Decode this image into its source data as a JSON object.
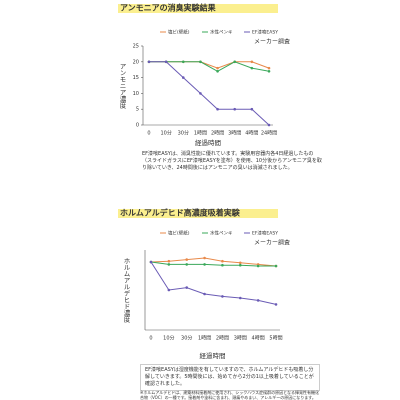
{
  "chart_data": [
    {
      "type": "line",
      "title": "アンモニアの消臭実験結果",
      "annotation": "メーカー調査",
      "y_label": "アンモニア濃度",
      "x_label": "経過時間",
      "categories": [
        "0",
        "10分",
        "30分",
        "1時間",
        "2時間",
        "3時間",
        "4時間",
        "24時間"
      ],
      "series": [
        {
          "name": "塩ビ(壁紙)",
          "color": "#e8894a",
          "values": [
            20,
            20,
            20,
            20,
            18,
            20,
            20,
            18
          ]
        },
        {
          "name": "水性ペンキ",
          "color": "#3aa85a",
          "values": [
            20,
            20,
            20,
            20,
            17,
            20,
            18,
            17
          ]
        },
        {
          "name": "EF漆喰EASY",
          "color": "#6a5bb5",
          "values": [
            20,
            20,
            15,
            10,
            5,
            5,
            5,
            0
          ]
        }
      ],
      "ylim": [
        0,
        25
      ],
      "yticks": [
        0,
        5,
        10,
        15,
        20,
        25
      ]
    },
    {
      "type": "line",
      "title": "ホルムアルデヒド高濃度吸着実験",
      "annotation": "メーカー調査",
      "y_label": "ホルムアルデヒド濃度",
      "x_label": "経過時間",
      "categories": [
        "0",
        "10分",
        "30分",
        "1時間",
        "2時間",
        "3時間",
        "4時間",
        "5時間"
      ],
      "series": [
        {
          "name": "塩ビ(壁紙)",
          "color": "#e8894a",
          "values": [
            85,
            86,
            88,
            90,
            86,
            84,
            82,
            80
          ]
        },
        {
          "name": "水性ペンキ",
          "color": "#3aa85a",
          "values": [
            85,
            82,
            82,
            82,
            81,
            81,
            80,
            80
          ]
        },
        {
          "name": "EF漆喰EASY",
          "color": "#6a5bb5",
          "values": [
            85,
            50,
            53,
            45,
            42,
            40,
            37,
            32
          ]
        }
      ],
      "ylim": [
        0,
        100
      ]
    }
  ],
  "notes": [
    "EF漆喰EASYは、消臭性能に優れています。実験用容器内各4日経過したもの（スライドガラスにEF漆喰EASYを塗布）を使用、10分後からアンモニア臭を取り除いていき、24時間後にはアンモニアの臭いは消滅されました。",
    "EF漆喰EASYは湿度機能を有していますので、ホルムアルデヒドも吸着し分解していきます。5時間後には、始めてから2分の1以上吸着していることが確認されました。"
  ],
  "footnote": "※ホルムアルデヒドは、建築材料接着剤に使用され、シックハウス症候群の原因となる揮発性有機化合物（VOC）の一種です。接着剤や塗料に含まれ、頭痛やめまい、アレルギーの原因になります。"
}
